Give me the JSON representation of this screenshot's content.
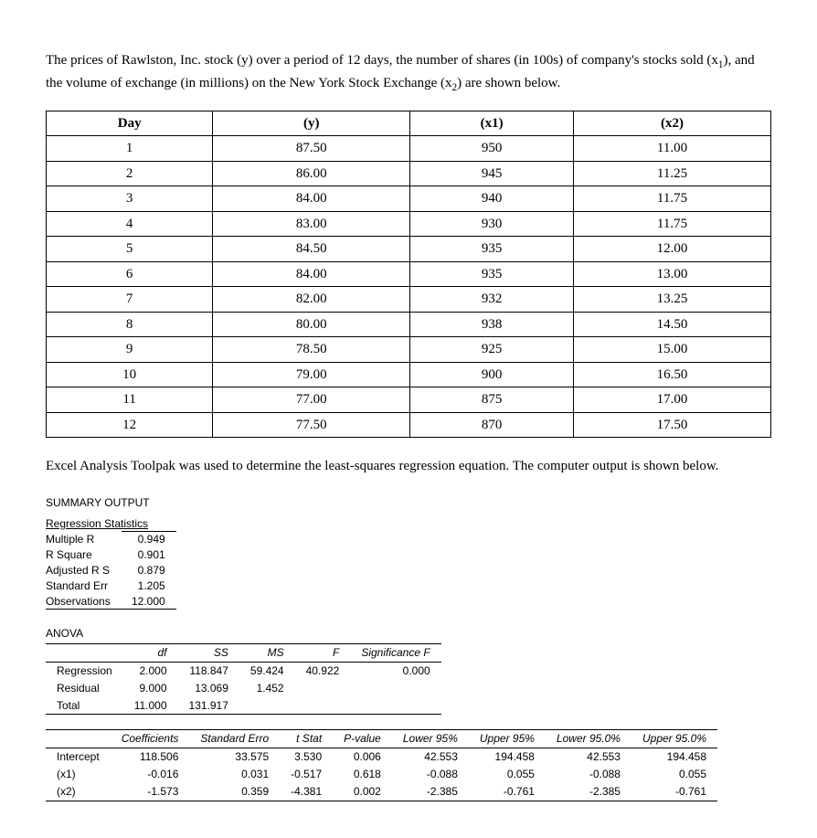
{
  "intro_html": "The prices of Rawlston, Inc. stock (y) over a period of 12 days, the number of shares (in 100s) of company's stocks sold (x<sub>1</sub>), and the volume of exchange (in millions) on the New York Stock Exchange (x<sub>2</sub>) are shown below.",
  "data_table": {
    "columns": [
      "Day",
      "(y)",
      "(x1)",
      "(x2)"
    ],
    "rows": [
      [
        "1",
        "87.50",
        "950",
        "11.00"
      ],
      [
        "2",
        "86.00",
        "945",
        "11.25"
      ],
      [
        "3",
        "84.00",
        "940",
        "11.75"
      ],
      [
        "4",
        "83.00",
        "930",
        "11.75"
      ],
      [
        "5",
        "84.50",
        "935",
        "12.00"
      ],
      [
        "6",
        "84.00",
        "935",
        "13.00"
      ],
      [
        "7",
        "82.00",
        "932",
        "13.25"
      ],
      [
        "8",
        "80.00",
        "938",
        "14.50"
      ],
      [
        "9",
        "78.50",
        "925",
        "15.00"
      ],
      [
        "10",
        "79.00",
        "900",
        "16.50"
      ],
      [
        "11",
        "77.00",
        "875",
        "17.00"
      ],
      [
        "12",
        "77.50",
        "870",
        "17.50"
      ]
    ]
  },
  "mid_text": "Excel Analysis Toolpak was used to determine the least-squares regression equation. The computer output is shown below.",
  "summary": {
    "heading": "SUMMARY OUTPUT",
    "stats_title": "Regression Statistics",
    "rows": [
      [
        "Multiple R",
        "0.949"
      ],
      [
        "R Square",
        "0.901"
      ],
      [
        "Adjusted R S",
        "0.879"
      ],
      [
        "Standard Err",
        "1.205"
      ],
      [
        "Observations",
        "12.000"
      ]
    ]
  },
  "anova": {
    "title": "ANOVA",
    "columns": [
      "",
      "df",
      "SS",
      "MS",
      "F",
      "Significance F"
    ],
    "rows": [
      [
        "Regression",
        "2.000",
        "118.847",
        "59.424",
        "40.922",
        "0.000"
      ],
      [
        "Residual",
        "9.000",
        "13.069",
        "1.452",
        "",
        ""
      ],
      [
        "Total",
        "11.000",
        "131.917",
        "",
        "",
        ""
      ]
    ]
  },
  "coef": {
    "columns": [
      "",
      "Coefficients",
      "Standard Erro",
      "t Stat",
      "P-value",
      "Lower 95%",
      "Upper 95%",
      "Lower 95.0%",
      "Upper 95.0%"
    ],
    "rows": [
      [
        "Intercept",
        "118.506",
        "33.575",
        "3.530",
        "0.006",
        "42.553",
        "194.458",
        "42.553",
        "194.458"
      ],
      [
        "(x1)",
        "-0.016",
        "0.031",
        "-0.517",
        "0.618",
        "-0.088",
        "0.055",
        "-0.088",
        "0.055"
      ],
      [
        "(x2)",
        "-1.573",
        "0.359",
        "-4.381",
        "0.002",
        "-2.385",
        "-0.761",
        "-2.385",
        "-0.761"
      ]
    ]
  }
}
